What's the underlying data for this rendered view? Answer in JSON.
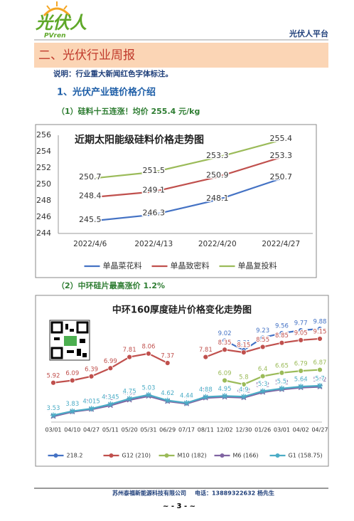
{
  "header": {
    "logo": "光伏人",
    "logo_sub": "PVren",
    "platform": "光伏人平台"
  },
  "section_title": "二、光伏行业周报",
  "note": "说明：行业重大新闻红色字体标注。",
  "subheading": "1、光伏产业链价格介绍",
  "items": [
    "（1）硅料十五连涨！均价 255.4 元/kg",
    "（2）中环硅片最高涨价 1.2%"
  ],
  "chart_data": [
    {
      "type": "line",
      "title": "近期太阳能级硅料价格走势图",
      "categories": [
        "2022/4/6",
        "2022/4/13",
        "2022/4/20",
        "2022/4/27"
      ],
      "series": [
        {
          "name": "单晶菜花料",
          "color": "#4472c4",
          "values": [
            245.5,
            246.3,
            248.1,
            250.7
          ]
        },
        {
          "name": "单晶致密料",
          "color": "#c0504d",
          "values": [
            248.4,
            249.1,
            250.9,
            253.3
          ]
        },
        {
          "name": "单晶复投料",
          "color": "#9bbb59",
          "values": [
            250.7,
            251.5,
            253.3,
            255.4
          ]
        }
      ],
      "ylim": [
        244,
        256
      ],
      "yticks": [
        244,
        246,
        248,
        250,
        252,
        254,
        256
      ],
      "legend": "bottom"
    },
    {
      "type": "line",
      "title": "中环160厚度硅片价格变化走势图",
      "categories": [
        "03/01",
        "04/10",
        "04/27",
        "05/11",
        "05/20",
        "05/31",
        "06/29",
        "07/17",
        "08/11",
        "12/02",
        "12/30",
        "01/26",
        "03/01",
        "04/02",
        "04/27"
      ],
      "series": [
        {
          "name": "218.2",
          "color": "#4472c4",
          "marker": "circle",
          "values": [
            null,
            null,
            null,
            null,
            null,
            null,
            null,
            null,
            null,
            9.02,
            8.31,
            9.23,
            9.56,
            9.77,
            9.88
          ]
        },
        {
          "name": "G12 (210)",
          "color": "#c0504d",
          "marker": "circle",
          "values": [
            5.92,
            6.09,
            6.39,
            6.99,
            7.81,
            8.06,
            7.37,
            null,
            7.81,
            8.35,
            8.15,
            8.55,
            8.85,
            9.05,
            9.15
          ]
        },
        {
          "name": "M10 (182)",
          "color": "#9bbb59",
          "marker": "circle",
          "values": [
            null,
            null,
            null,
            null,
            null,
            null,
            null,
            null,
            null,
            6.09,
            5.8,
            6.4,
            6.65,
            6.79,
            6.87
          ]
        },
        {
          "name": "M6 (166)",
          "color": "#8064a2",
          "marker": "x",
          "values": [
            3.45,
            3.78,
            3.96,
            4.25,
            4.65,
            4.93,
            4.55,
            4.38,
            4.8,
            4.87,
            4.82,
            5.22,
            5.42,
            5.56,
            5.62
          ]
        },
        {
          "name": "G1 (158.75)",
          "color": "#4bacc6",
          "marker": "star",
          "values": [
            3.53,
            3.83,
            4.015,
            4.345,
            4.75,
            5.03,
            4.62,
            4.44,
            4.88,
            4.95,
            4.9,
            5.3,
            5.5,
            5.64,
            5.7
          ]
        }
      ],
      "legend": "bottom"
    }
  ],
  "footer": {
    "company": "苏州泰福新能源科技有限公司",
    "phone": "电话：13889322632 杨先生",
    "page": "~ - 3 - ~"
  }
}
